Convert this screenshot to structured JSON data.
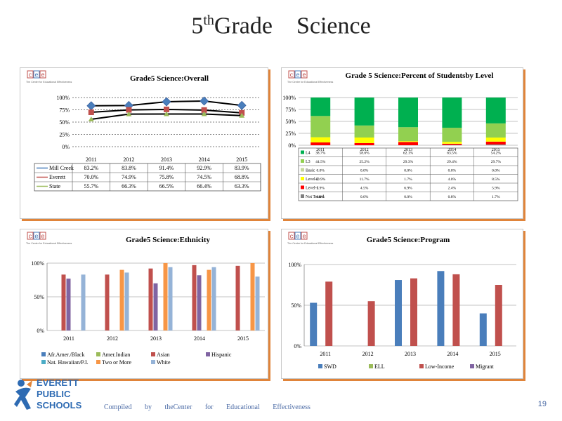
{
  "slide": {
    "title_pre": "5",
    "title_sup": "th",
    "title_post": "Grade    Science",
    "footer": "Compiled by theCenter for Educational Effectiveness",
    "page_number": "19",
    "district": [
      "EVERETT",
      "PUBLIC",
      "SCHOOLS"
    ]
  },
  "logo": {
    "mark": "cee",
    "caption": "The Center for Educational Effectiveness"
  },
  "colors": {
    "accent": "#e0843a",
    "blue": "#4a7ebb",
    "red": "#c0504d",
    "green": "#9bbb59",
    "purple": "#8064a2",
    "lightblue": "#95b3d7",
    "orange": "#f79646",
    "l4": "#00b050",
    "l3": "#92d050",
    "basic": "#c4d79b",
    "level2": "#ffff00",
    "level1": "#ff0000",
    "nottested": "#7f7f7f"
  },
  "chart_data": [
    {
      "type": "line",
      "title": "Grade5 Science:Overall",
      "categories": [
        "2011",
        "2012",
        "2013",
        "2014",
        "2015"
      ],
      "ylim": [
        0,
        100
      ],
      "yticks": [
        "0%",
        "25%",
        "50%",
        "75%",
        "100%"
      ],
      "series": [
        {
          "name": "Mill Creek",
          "values": [
            83.2,
            83.8,
            91.4,
            92.9,
            83.9
          ],
          "labels": [
            "83.2%",
            "83.8%",
            "91.4%",
            "92.9%",
            "83.9%"
          ],
          "color": "#4a7ebb",
          "marker": "diamond"
        },
        {
          "name": "Everett",
          "values": [
            70.0,
            74.9,
            75.8,
            74.5,
            68.8
          ],
          "labels": [
            "70.0%",
            "74.9%",
            "75.8%",
            "74.5%",
            "68.8%"
          ],
          "color": "#c0504d",
          "marker": "square"
        },
        {
          "name": "State",
          "values": [
            55.7,
            66.3,
            66.5,
            66.4,
            63.3
          ],
          "labels": [
            "55.7%",
            "66.3%",
            "66.5%",
            "66.4%",
            "63.3%"
          ],
          "color": "#9bbb59",
          "marker": "triangle"
        }
      ]
    },
    {
      "type": "bar",
      "stacked": true,
      "title": "Grade 5 Science:Percent of Studentsby Level",
      "categories": [
        "2011",
        "2012",
        "2013",
        "2014",
        "2015"
      ],
      "ylim": [
        0,
        100
      ],
      "yticks": [
        "0%",
        "25%",
        "50%",
        "75%",
        "100%"
      ],
      "series": [
        {
          "name": "Not Tested",
          "values": [
            0.0,
            0.0,
            0.0,
            0.8,
            1.7
          ],
          "labels": [
            "0.0%",
            "0.0%",
            "0.0%",
            "0.8%",
            "1.7%"
          ],
          "color": "#7f7f7f"
        },
        {
          "name": "Level-1",
          "values": [
            5.9,
            4.5,
            6.9,
            2.4,
            5.9
          ],
          "labels": [
            "5.9%",
            "4.5%",
            "6.9%",
            "2.4%",
            "5.9%"
          ],
          "color": "#ff0000"
        },
        {
          "name": "Level-2",
          "values": [
            10.9,
            11.7,
            1.7,
            4.0,
            8.5
          ],
          "labels": [
            "10.9%",
            "11.7%",
            "1.7%",
            "4.0%",
            "8.5%"
          ],
          "color": "#ffff00"
        },
        {
          "name": "Basic",
          "values": [
            0.0,
            0.0,
            0.0,
            0.0,
            0.0
          ],
          "labels": [
            "0.0%",
            "0.0%",
            "0.0%",
            "0.0%",
            "0.0%"
          ],
          "color": "#c4d79b"
        },
        {
          "name": "L3",
          "values": [
            44.5,
            25.2,
            29.3,
            29.4,
            29.7
          ],
          "labels": [
            "44.5%",
            "25.2%",
            "29.3%",
            "29.4%",
            "29.7%"
          ],
          "color": "#92d050"
        },
        {
          "name": "L4",
          "values": [
            38.7,
            58.6,
            62.1,
            63.5,
            54.2
          ],
          "labels": [
            "38.7%",
            "58.6%",
            "62.1%",
            "63.5%",
            "54.2%"
          ],
          "color": "#00b050"
        }
      ],
      "table_order": [
        "L4",
        "L3",
        "Basic",
        "Level-2",
        "Level-1",
        "Not Tested"
      ]
    },
    {
      "type": "bar",
      "title": "Grade5 Science:Ethnicity",
      "categories": [
        "2011",
        "2012",
        "2013",
        "2014",
        "2015"
      ],
      "ylim": [
        0,
        100
      ],
      "yticks": [
        "0%",
        "50%",
        "100%"
      ],
      "series": [
        {
          "name": "Afr.Amer./Black",
          "values": [
            null,
            null,
            null,
            null,
            null
          ],
          "color": "#4a7ebb"
        },
        {
          "name": "Amer.Indian",
          "values": [
            null,
            null,
            null,
            null,
            null
          ],
          "color": "#9bbb59"
        },
        {
          "name": "Asian",
          "values": [
            83,
            83,
            92,
            97,
            96
          ],
          "color": "#c0504d"
        },
        {
          "name": "Hispanic",
          "values": [
            77,
            null,
            70,
            82,
            null
          ],
          "color": "#8064a2"
        },
        {
          "name": "Nat. Hawaiian/P.I.",
          "values": [
            null,
            null,
            null,
            null,
            null
          ],
          "color": "#4bacc6"
        },
        {
          "name": "Two or More",
          "values": [
            null,
            90,
            100,
            90,
            100
          ],
          "color": "#f79646"
        },
        {
          "name": "White",
          "values": [
            83,
            86,
            94,
            94,
            80
          ],
          "color": "#95b3d7"
        }
      ],
      "legend_placement": "bottom"
    },
    {
      "type": "bar",
      "title": "Grade5 Science:Program",
      "categories": [
        "2011",
        "2012",
        "2013",
        "2014",
        "2015"
      ],
      "ylim": [
        0,
        100
      ],
      "yticks": [
        "0%",
        "50%",
        "100%"
      ],
      "series": [
        {
          "name": "SWD",
          "values": [
            53,
            null,
            81,
            92,
            40
          ],
          "color": "#4a7ebb"
        },
        {
          "name": "ELL",
          "values": [
            null,
            null,
            null,
            null,
            null
          ],
          "color": "#9bbb59"
        },
        {
          "name": "Low-Income",
          "values": [
            79,
            55,
            83,
            88,
            75
          ],
          "color": "#c0504d"
        },
        {
          "name": "Migrant",
          "values": [
            null,
            null,
            null,
            null,
            null
          ],
          "color": "#8064a2"
        }
      ],
      "legend_placement": "bottom"
    }
  ]
}
